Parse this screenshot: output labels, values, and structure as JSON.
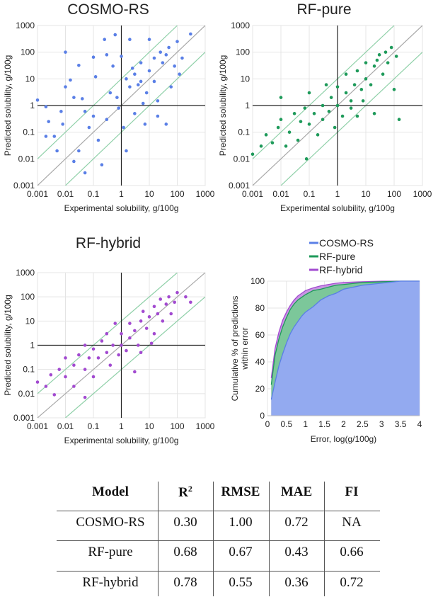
{
  "colors": {
    "cosmo": "#5a7fe6",
    "pure": "#1e9a5a",
    "hybrid": "#a24ad0",
    "diag": "#a8a8a8",
    "band": "#8fd0a8",
    "axis": "#222222",
    "grid": "#e4e4e4"
  },
  "chart_data": [
    {
      "type": "scatter",
      "title": "COSMO-RS",
      "xlabel": "Experimental solubility, g/100g",
      "ylabel": "Predicted solubility, g/100g",
      "xscale": "log",
      "yscale": "log",
      "xlim": [
        0.001,
        1000
      ],
      "ylim": [
        0.001,
        1000
      ],
      "ticks": [
        "0.001",
        "0.01",
        "0.1",
        "1",
        "10",
        "100",
        "1000"
      ],
      "grid": true,
      "reference_lines": [
        "y=x",
        "y=10x",
        "y=x/10",
        "x=1",
        "y=1"
      ],
      "color": "#5a7fe6",
      "points": [
        [
          0.001,
          1.6
        ],
        [
          0.002,
          0.9
        ],
        [
          0.0025,
          0.25
        ],
        [
          0.002,
          0.07
        ],
        [
          0.004,
          0.07
        ],
        [
          0.005,
          0.02
        ],
        [
          0.007,
          0.6
        ],
        [
          0.008,
          0.2
        ],
        [
          0.01,
          100
        ],
        [
          0.01,
          5
        ],
        [
          0.015,
          9
        ],
        [
          0.02,
          2
        ],
        [
          0.02,
          0.008
        ],
        [
          0.03,
          32
        ],
        [
          0.03,
          0.02
        ],
        [
          0.04,
          1.8
        ],
        [
          0.05,
          0.6
        ],
        [
          0.05,
          0.003
        ],
        [
          0.07,
          0.15
        ],
        [
          0.1,
          65
        ],
        [
          0.1,
          0.4
        ],
        [
          0.12,
          12
        ],
        [
          0.15,
          0.05
        ],
        [
          0.2,
          0.006
        ],
        [
          0.25,
          300
        ],
        [
          0.3,
          80
        ],
        [
          0.3,
          0.3
        ],
        [
          0.4,
          3
        ],
        [
          0.5,
          30
        ],
        [
          0.6,
          450
        ],
        [
          0.7,
          2
        ],
        [
          0.8,
          0.8
        ],
        [
          1,
          70
        ],
        [
          1.2,
          0.15
        ],
        [
          1.5,
          0.02
        ],
        [
          1.5,
          10
        ],
        [
          2,
          300
        ],
        [
          2,
          5
        ],
        [
          3,
          15
        ],
        [
          3,
          0.5
        ],
        [
          5,
          8
        ],
        [
          5,
          40
        ],
        [
          7,
          0.2
        ],
        [
          8,
          3
        ],
        [
          10,
          300
        ],
        [
          10,
          20
        ],
        [
          15,
          60
        ],
        [
          20,
          1.5
        ],
        [
          20,
          0.4
        ],
        [
          25,
          100
        ],
        [
          30,
          40
        ],
        [
          40,
          80
        ],
        [
          40,
          0.2
        ],
        [
          50,
          150
        ],
        [
          80,
          30
        ],
        [
          100,
          250
        ],
        [
          150,
          60
        ],
        [
          300,
          480
        ],
        [
          120,
          15
        ],
        [
          6,
          1.2
        ],
        [
          2.5,
          25
        ],
        [
          4,
          6
        ],
        [
          15,
          8
        ],
        [
          60,
          5
        ]
      ]
    },
    {
      "type": "scatter",
      "title": "RF-pure",
      "xlabel": "Experimental solubility, g/100g",
      "ylabel": "Predicted solubility, g/100g",
      "xscale": "log",
      "yscale": "log",
      "xlim": [
        0.001,
        1000
      ],
      "ylim": [
        0.001,
        1000
      ],
      "ticks": [
        "0.001",
        "0.01",
        "0.1",
        "1",
        "10",
        "100",
        "1000"
      ],
      "grid": true,
      "reference_lines": [
        "y=x",
        "y=10x",
        "y=x/10",
        "x=1",
        "y=1"
      ],
      "color": "#1e9a5a",
      "points": [
        [
          0.001,
          0.015
        ],
        [
          0.002,
          0.03
        ],
        [
          0.003,
          0.08
        ],
        [
          0.005,
          0.04
        ],
        [
          0.008,
          0.15
        ],
        [
          0.01,
          0.3
        ],
        [
          0.01,
          2
        ],
        [
          0.015,
          0.03
        ],
        [
          0.02,
          0.1
        ],
        [
          0.03,
          0.5
        ],
        [
          0.04,
          0.05
        ],
        [
          0.05,
          0.25
        ],
        [
          0.07,
          0.8
        ],
        [
          0.08,
          0.01
        ],
        [
          0.1,
          0.2
        ],
        [
          0.1,
          3
        ],
        [
          0.15,
          0.5
        ],
        [
          0.2,
          0.08
        ],
        [
          0.3,
          1
        ],
        [
          0.3,
          0.3
        ],
        [
          0.4,
          6
        ],
        [
          0.5,
          0.6
        ],
        [
          0.6,
          2
        ],
        [
          0.8,
          0.15
        ],
        [
          1,
          1
        ],
        [
          1,
          5
        ],
        [
          1.5,
          0.4
        ],
        [
          2,
          3
        ],
        [
          2,
          15
        ],
        [
          3,
          1.5
        ],
        [
          4,
          6
        ],
        [
          5,
          0.4
        ],
        [
          5,
          20
        ],
        [
          7,
          4
        ],
        [
          10,
          10
        ],
        [
          10,
          40
        ],
        [
          15,
          6
        ],
        [
          20,
          0.5
        ],
        [
          20,
          30
        ],
        [
          30,
          80
        ],
        [
          40,
          15
        ],
        [
          50,
          100
        ],
        [
          60,
          40
        ],
        [
          80,
          150
        ],
        [
          100,
          4
        ],
        [
          120,
          70
        ],
        [
          150,
          0.3
        ],
        [
          3,
          0.8
        ],
        [
          8,
          1.5
        ],
        [
          25,
          50
        ]
      ]
    },
    {
      "type": "scatter",
      "title": "RF-hybrid",
      "xlabel": "Experimental solubility, g/100g",
      "ylabel": "Predicted solubility, g/100g",
      "xscale": "log",
      "yscale": "log",
      "xlim": [
        0.001,
        1000
      ],
      "ylim": [
        0.001,
        1000
      ],
      "ticks": [
        "0.001",
        "0.01",
        "0.1",
        "1",
        "10",
        "100",
        "1000"
      ],
      "grid": true,
      "reference_lines": [
        "y=x",
        "y=10x",
        "y=x/10",
        "x=1",
        "y=1"
      ],
      "color": "#a24ad0",
      "points": [
        [
          0.001,
          0.03
        ],
        [
          0.002,
          0.02
        ],
        [
          0.003,
          0.06
        ],
        [
          0.004,
          0.009
        ],
        [
          0.006,
          0.1
        ],
        [
          0.01,
          0.05
        ],
        [
          0.01,
          0.3
        ],
        [
          0.02,
          0.02
        ],
        [
          0.02,
          0.15
        ],
        [
          0.03,
          0.4
        ],
        [
          0.05,
          0.1
        ],
        [
          0.05,
          1
        ],
        [
          0.07,
          0.3
        ],
        [
          0.1,
          0.05
        ],
        [
          0.1,
          0.7
        ],
        [
          0.15,
          0.3
        ],
        [
          0.2,
          1.5
        ],
        [
          0.3,
          0.5
        ],
        [
          0.3,
          3
        ],
        [
          0.4,
          0.15
        ],
        [
          0.5,
          1
        ],
        [
          0.6,
          8
        ],
        [
          0.8,
          0.4
        ],
        [
          1,
          1
        ],
        [
          1,
          3
        ],
        [
          1.5,
          0.6
        ],
        [
          2,
          2
        ],
        [
          2,
          8
        ],
        [
          3,
          4
        ],
        [
          4,
          1
        ],
        [
          5,
          10
        ],
        [
          6,
          25
        ],
        [
          8,
          5
        ],
        [
          10,
          15
        ],
        [
          15,
          3
        ],
        [
          15,
          40
        ],
        [
          20,
          20
        ],
        [
          25,
          80
        ],
        [
          30,
          10
        ],
        [
          40,
          50
        ],
        [
          50,
          100
        ],
        [
          60,
          20
        ],
        [
          80,
          60
        ],
        [
          100,
          150
        ],
        [
          200,
          100
        ],
        [
          300,
          60
        ],
        [
          5,
          0.5
        ],
        [
          3,
          0.08
        ],
        [
          12,
          1.2
        ],
        [
          0.05,
          0.007
        ]
      ]
    },
    {
      "type": "area",
      "xlabel": "Error, log(g/100g)",
      "ylabel": "Cumulative % of predictions within error",
      "xlim": [
        0,
        4
      ],
      "ylim": [
        0,
        100
      ],
      "xticks": [
        "0",
        "0.5",
        "1",
        "1.5",
        "2",
        "2.5",
        "3",
        "3.5",
        "4"
      ],
      "yticks": [
        "0",
        "20",
        "40",
        "60",
        "80",
        "100"
      ],
      "grid": true,
      "legend_position": "top",
      "x": [
        0.1,
        0.2,
        0.3,
        0.4,
        0.5,
        0.6,
        0.7,
        0.8,
        0.9,
        1.0,
        1.2,
        1.4,
        1.6,
        1.8,
        2.0,
        2.5,
        3.0,
        3.5,
        4.0
      ],
      "series": [
        {
          "name": "COSMO-RS",
          "color": "#5a7fe6",
          "fill": "#93aaf0",
          "values": [
            12,
            25,
            37,
            46,
            54,
            61,
            66,
            70,
            74,
            77,
            81,
            86,
            89,
            91,
            94,
            97,
            98.5,
            100,
            100
          ]
        },
        {
          "name": "RF-pure",
          "color": "#1e9a5a",
          "fill": "#7cc79a",
          "values": [
            23,
            45,
            57,
            66,
            73,
            79,
            83,
            86,
            88,
            90,
            93,
            94,
            95.5,
            97,
            97.5,
            99,
            99.5,
            100,
            100
          ]
        },
        {
          "name": "RF-hybrid",
          "color": "#a24ad0",
          "fill": "#c995e3",
          "values": [
            28,
            50,
            62,
            71,
            77,
            82,
            86,
            89,
            91,
            93,
            95,
            96.5,
            97.5,
            98.5,
            99,
            99.5,
            100,
            100,
            100
          ]
        }
      ]
    }
  ],
  "table": {
    "headers": [
      "Model",
      "R",
      "RMSE",
      "MAE",
      "FI"
    ],
    "r_superscript": "2",
    "rows": [
      [
        "COSMO-RS",
        "0.30",
        "1.00",
        "0.72",
        "NA"
      ],
      [
        "RF-pure",
        "0.68",
        "0.67",
        "0.43",
        "0.66"
      ],
      [
        "RF-hybrid",
        "0.78",
        "0.55",
        "0.36",
        "0.72"
      ]
    ]
  }
}
